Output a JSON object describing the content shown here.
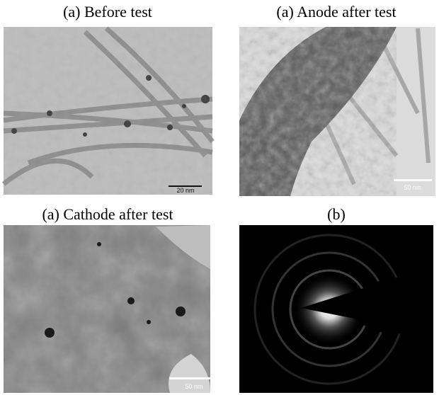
{
  "panels": [
    {
      "caption": "(a) Before test",
      "scale_bar": "20 nm"
    },
    {
      "caption": "(a) Anode after test",
      "scale_bar": "50 nm"
    },
    {
      "caption": "(a) Cathode after test",
      "scale_bar": "50 nm"
    },
    {
      "caption": "(b)"
    }
  ]
}
